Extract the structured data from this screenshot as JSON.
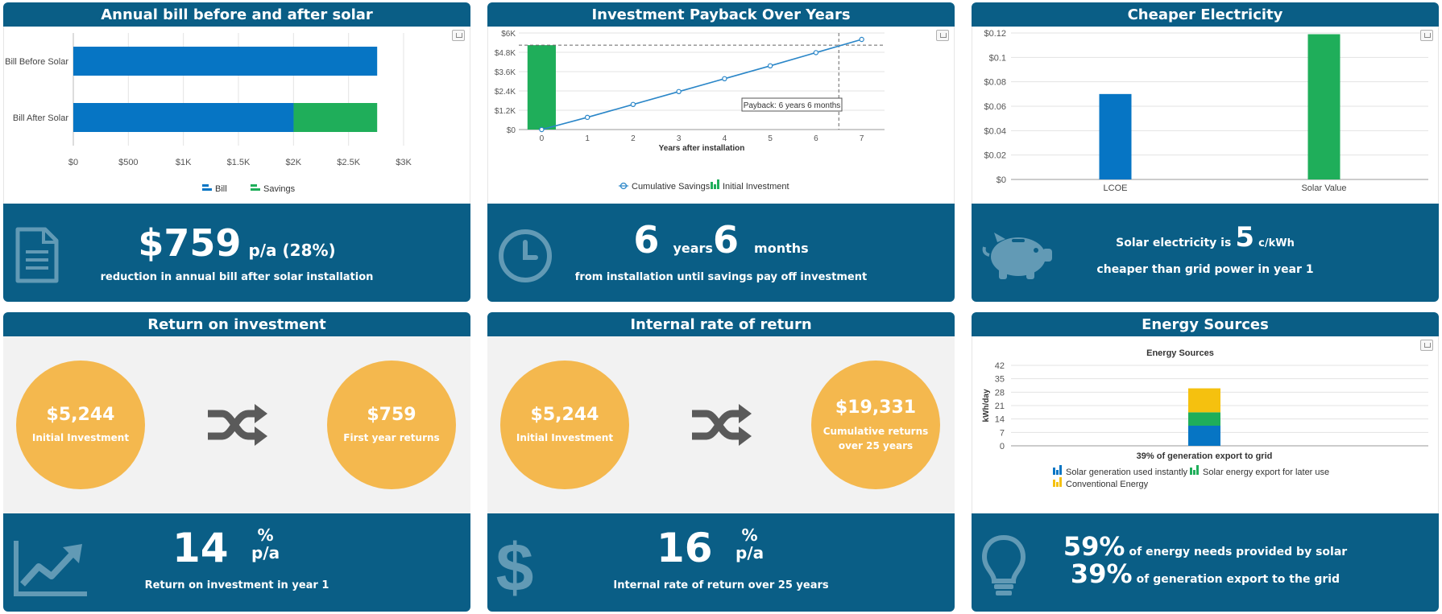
{
  "colors": {
    "header": "#0a5e86",
    "bill_blue": "#0675c4",
    "savings_green": "#1fae5a",
    "conventional_yellow": "#f5c10f",
    "circle_orange": "#f4b84e",
    "line_blue": "#2a86c8"
  },
  "panels": {
    "annual_bill": {
      "title": "Annual bill before and after solar",
      "big_value": "$759",
      "big_unit": "p/a (28%)",
      "subtitle": "reduction in annual bill after solar installation",
      "icon": "document-icon"
    },
    "payback": {
      "title": "Investment Payback Over Years",
      "years": "6",
      "years_unit": "years",
      "months": "6",
      "months_unit": "months",
      "subtitle": "from installation until savings pay off investment",
      "icon": "clock-icon"
    },
    "cheaper": {
      "title": "Cheaper Electricity",
      "line1_pre": "Solar electricity is",
      "value": "5",
      "unit": "c/kWh",
      "line2": "cheaper than grid power in year 1",
      "icon": "piggy-bank-icon"
    },
    "roi": {
      "title": "Return on investment",
      "left_amount": "$5,244",
      "left_label": "Initial Investment",
      "right_amount": "$759",
      "right_label": "First year returns",
      "big_value": "14",
      "big_unit_top": "%",
      "big_unit_bottom": "p/a",
      "subtitle": "Return on investment in year 1",
      "icon": "trend-up-icon"
    },
    "irr": {
      "title": "Internal rate of return",
      "left_amount": "$5,244",
      "left_label": "Initial Investment",
      "right_amount": "$19,331",
      "right_label_line1": "Cumulative returns",
      "right_label_line2": "over 25 years",
      "big_value": "16",
      "big_unit_top": "%",
      "big_unit_bottom": "p/a",
      "subtitle": "Internal rate of return over 25 years",
      "icon": "dollar-icon"
    },
    "energy": {
      "title": "Energy Sources",
      "line1_value": "59%",
      "line1_text": "of energy needs provided by solar",
      "line2_value": "39%",
      "line2_text": "of generation export to the grid",
      "icon": "lightbulb-icon"
    }
  },
  "chart_data": [
    {
      "id": "annual_bill",
      "type": "bar",
      "orientation": "horizontal",
      "stacked": true,
      "categories": [
        "Bill Before Solar",
        "Bill After Solar"
      ],
      "series": [
        {
          "name": "Bill",
          "values": [
            2760,
            2001
          ],
          "color": "#0675c4"
        },
        {
          "name": "Savings",
          "values": [
            0,
            759
          ],
          "color": "#1fae5a"
        }
      ],
      "xlim": [
        0,
        3000
      ],
      "x_ticks": [
        0,
        500,
        1000,
        1500,
        2000,
        2500,
        3000
      ],
      "x_tick_labels": [
        "$0",
        "$500",
        "$1K",
        "$1.5K",
        "$2K",
        "$2.5K",
        "$3K"
      ],
      "legend": "bottom"
    },
    {
      "id": "payback",
      "type": "line",
      "x": [
        0,
        1,
        2,
        3,
        4,
        5,
        6,
        7
      ],
      "series": [
        {
          "name": "Cumulative Savings",
          "type": "line",
          "values": [
            0,
            759,
            1560,
            2360,
            3160,
            3960,
            4780,
            5600
          ],
          "color": "#2a86c8"
        },
        {
          "name": "Initial Investment",
          "type": "bar",
          "values": [
            5244,
            null,
            null,
            null,
            null,
            null,
            null,
            null
          ],
          "color": "#1fae5a"
        }
      ],
      "xlabel": "Years after installation",
      "ylim": [
        0,
        6000
      ],
      "y_ticks": [
        0,
        1200,
        2400,
        3600,
        4800,
        6000
      ],
      "y_tick_labels": [
        "$0",
        "$1.2K",
        "$2.4K",
        "$3.6K",
        "$4.8K",
        "$6K"
      ],
      "reference_x": 6.5,
      "reference_y": 5244,
      "annotation": "Payback: 6 years 6 months",
      "legend": "bottom"
    },
    {
      "id": "cheaper",
      "type": "bar",
      "categories": [
        "LCOE",
        "Solar Value"
      ],
      "values": [
        0.07,
        0.119
      ],
      "colors": [
        "#0675c4",
        "#1fae5a"
      ],
      "ylim": [
        0,
        0.12
      ],
      "y_ticks": [
        0,
        0.02,
        0.04,
        0.06,
        0.08,
        0.1,
        0.12
      ],
      "y_tick_labels": [
        "$0",
        "$0.02",
        "$0.04",
        "$0.06",
        "$0.08",
        "$0.1",
        "$0.12"
      ]
    },
    {
      "id": "energy",
      "type": "bar",
      "stacked": true,
      "title": "Energy Sources",
      "categories": [
        "39% of generation export to grid"
      ],
      "series": [
        {
          "name": "Solar generation used instantly",
          "values": [
            10.5
          ],
          "color": "#0675c4"
        },
        {
          "name": "Solar energy export for later use",
          "values": [
            7
          ],
          "color": "#1fae5a"
        },
        {
          "name": "Conventional Energy",
          "values": [
            12.5
          ],
          "color": "#f5c10f"
        }
      ],
      "ylabel": "kWh/day",
      "ylim": [
        0,
        42
      ],
      "y_ticks": [
        0,
        7,
        14,
        21,
        28,
        35,
        42
      ],
      "y_tick_labels": [
        "0",
        "7",
        "14",
        "21",
        "28",
        "35",
        "42"
      ],
      "legend": "bottom"
    }
  ]
}
